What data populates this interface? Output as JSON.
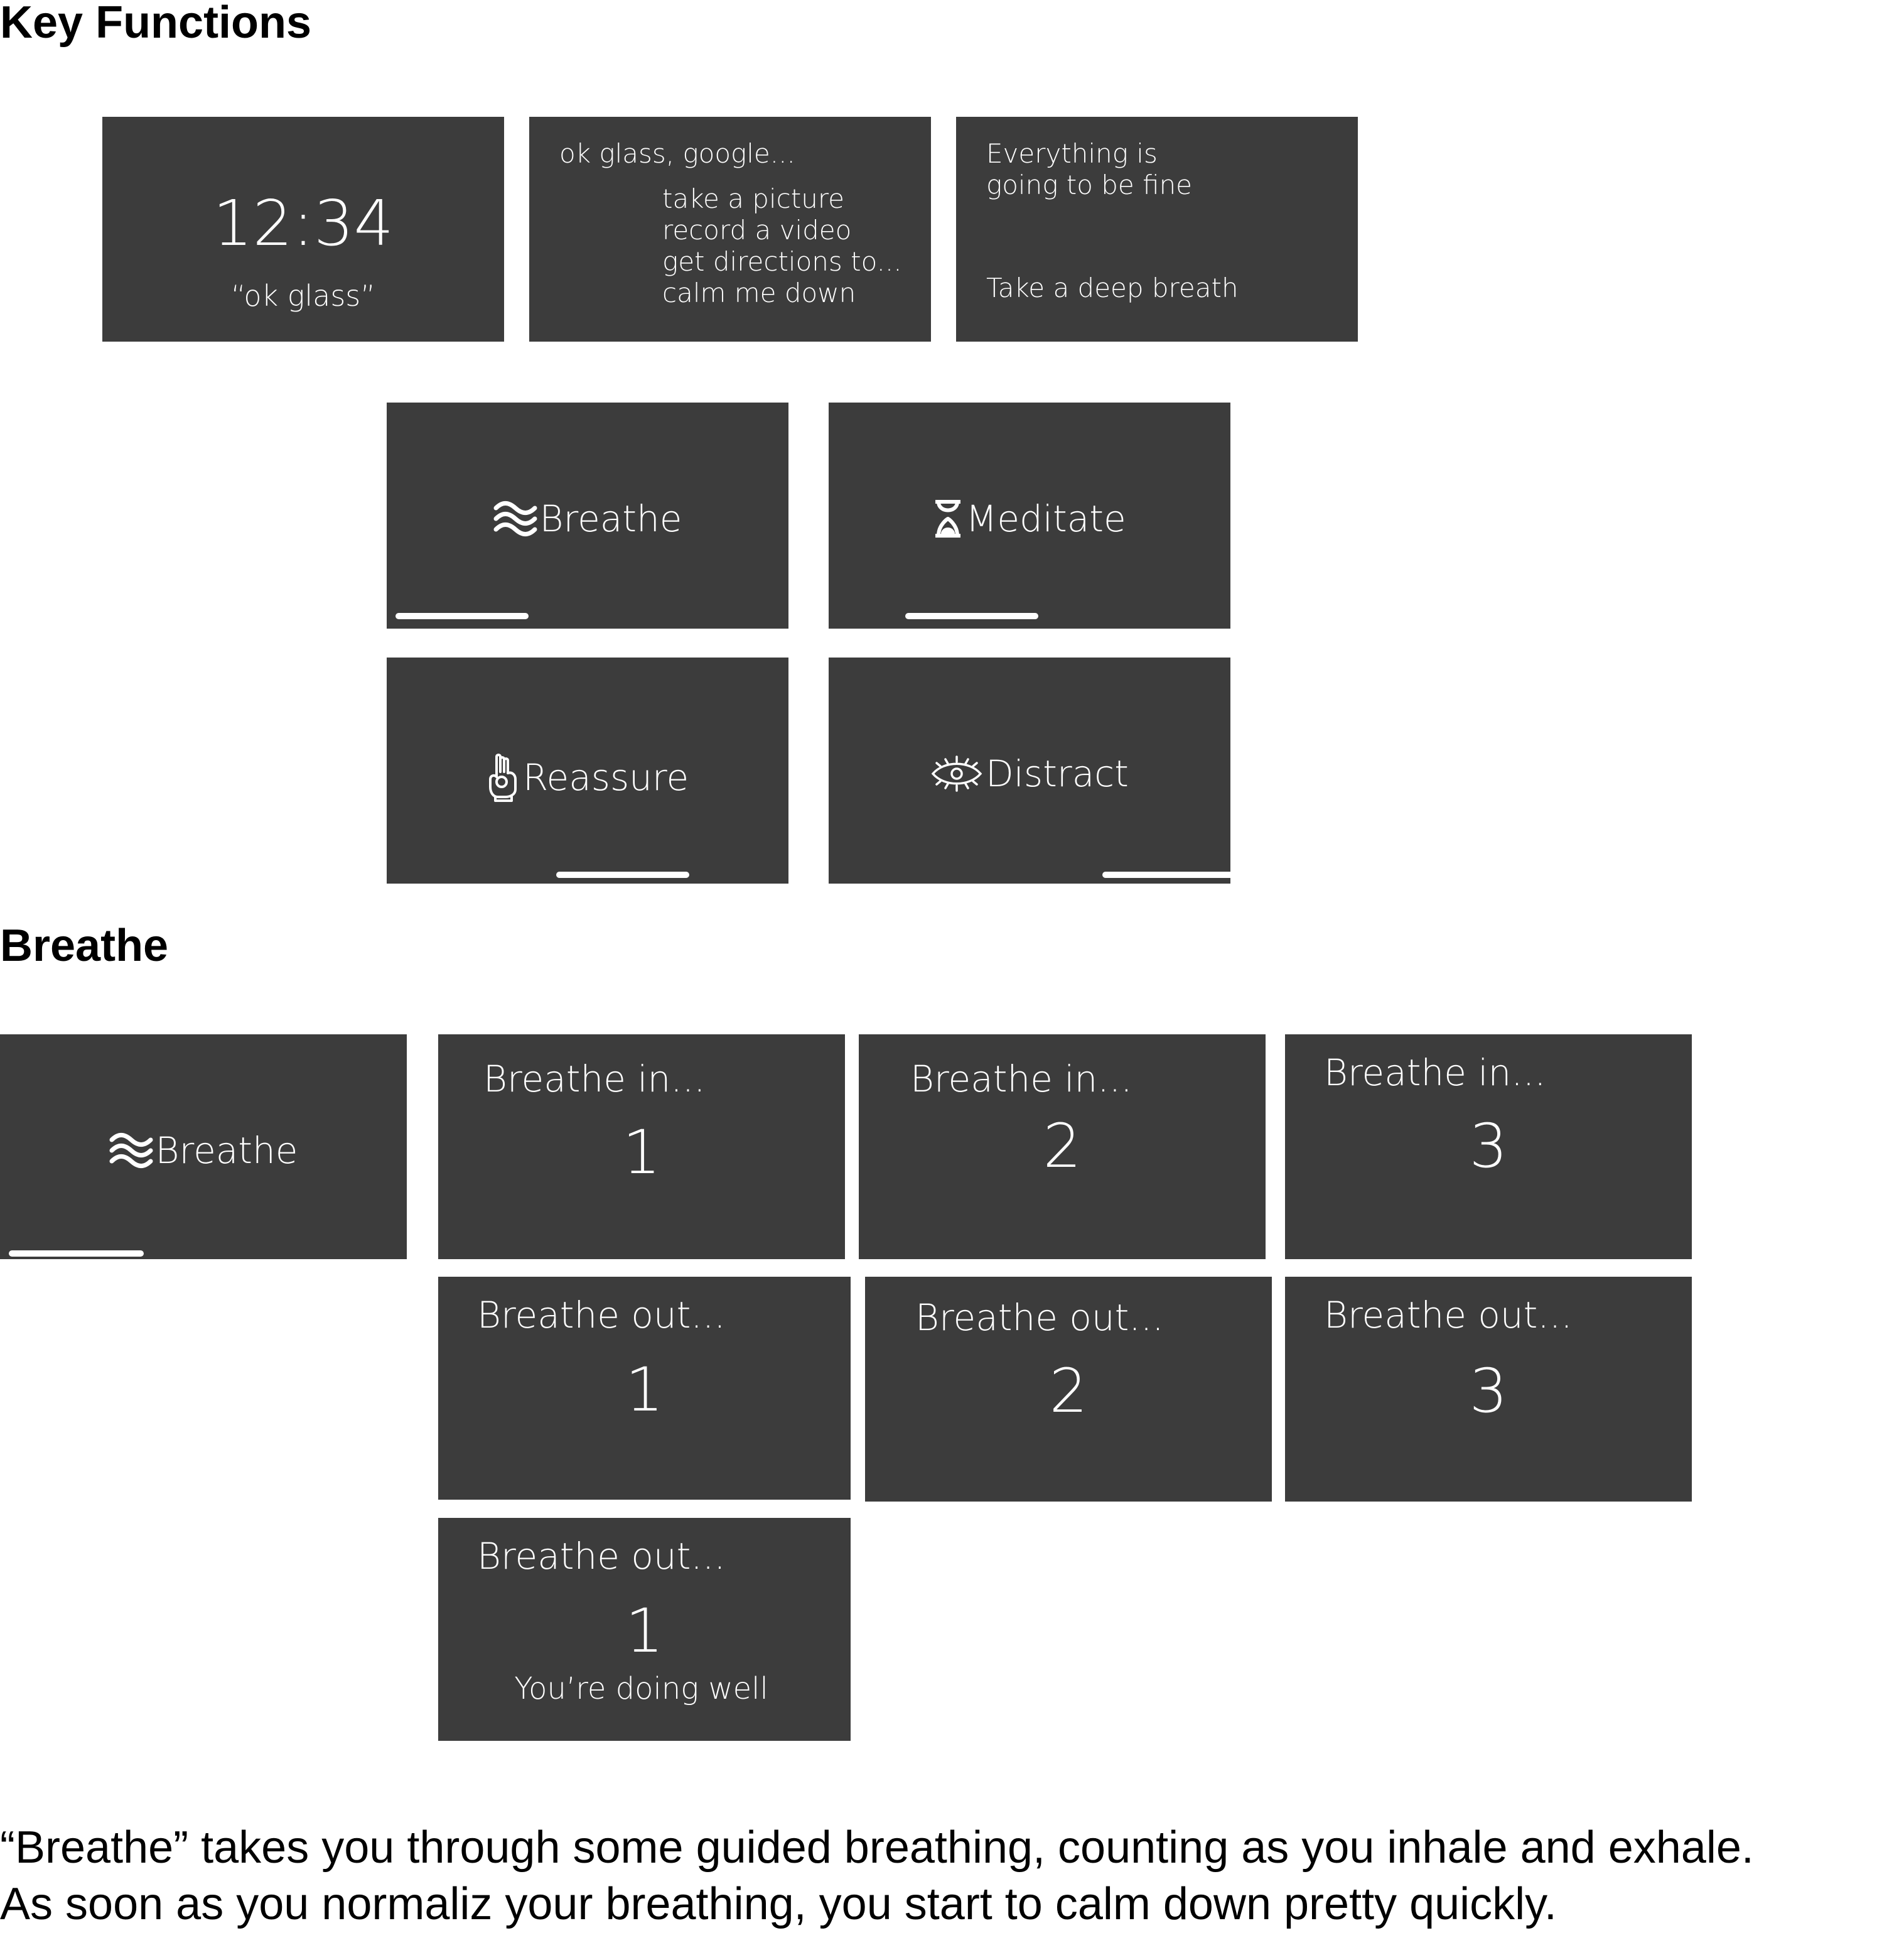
{
  "sections": {
    "key_functions_title": "Key Functions",
    "breathe_title": "Breathe"
  },
  "home_card": {
    "time": "12:34",
    "prompt": "“ok glass”"
  },
  "commands_card": {
    "header": "ok glass, google...",
    "items": [
      "take a picture",
      "record a video",
      "get directions to...",
      "calm me down"
    ]
  },
  "reassure_card": {
    "line1": "Everything is",
    "line2": "going to be fine",
    "line3": "Take a deep breath"
  },
  "menu": [
    {
      "label": "Breathe",
      "icon": "waves-icon"
    },
    {
      "label": "Meditate",
      "icon": "hourglass-icon"
    },
    {
      "label": "Reassure",
      "icon": "ok-hand-icon"
    },
    {
      "label": "Distract",
      "icon": "eye-icon"
    }
  ],
  "breathe_start": {
    "label": "Breathe",
    "icon": "waves-icon"
  },
  "breathe_steps": [
    {
      "title": "Breathe in...",
      "count": "1"
    },
    {
      "title": "Breathe in...",
      "count": "2"
    },
    {
      "title": "Breathe in...",
      "count": "3"
    },
    {
      "title": "Breathe out...",
      "count": "1"
    },
    {
      "title": "Breathe out...",
      "count": "2"
    },
    {
      "title": "Breathe out...",
      "count": "3"
    },
    {
      "title": "Breathe out...",
      "count": "1",
      "note": "You’re doing well"
    }
  ],
  "caption": {
    "line1": "“Breathe” takes you through some guided breathing, counting as you inhale and exhale.",
    "line2": "As soon as you normaliz your breathing, you start to calm down pretty quickly."
  },
  "colors": {
    "card": "#3c3c3c",
    "text": "#ffffff",
    "page": "#ffffff"
  }
}
